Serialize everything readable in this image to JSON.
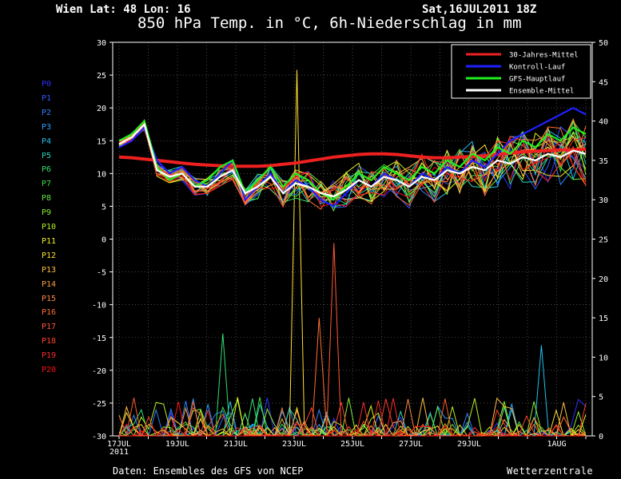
{
  "header": {
    "location": "Wien   Lat: 48 Lon: 16",
    "date": "Sat,16JUL2011 18Z",
    "title": "850 hPa Temp. in °C, 6h-Niederschlag in mm"
  },
  "footer": {
    "source": "Daten: Ensembles des GFS von NCEP",
    "brand": "Wetterzentrale"
  },
  "members": [
    "P0",
    "P1",
    "P2",
    "P3",
    "P4",
    "P5",
    "P6",
    "P7",
    "P8",
    "P9",
    "P10",
    "P11",
    "P12",
    "P13",
    "P14",
    "P15",
    "P16",
    "P17",
    "P18",
    "P19",
    "P20"
  ],
  "member_colors": [
    "#3030ff",
    "#2f58ff",
    "#2f80ff",
    "#2aa0ff",
    "#22c0ee",
    "#20d8b8",
    "#30e070",
    "#40e040",
    "#60e840",
    "#88ee30",
    "#b8f020",
    "#e8f020",
    "#ffe030",
    "#ffc040",
    "#ffa040",
    "#ff8840",
    "#ff7030",
    "#ff5a30",
    "#ff4030",
    "#ff2828",
    "#ff1010"
  ],
  "chart_data": {
    "type": "line",
    "title": "850 hPa Temp. in °C, 6h-Niederschlag in mm",
    "x_ticks": [
      "17JUL\n2011",
      "19JUL",
      "21JUL",
      "23JUL",
      "25JUL",
      "27JUL",
      "29JUL",
      "1AUG"
    ],
    "y_left": {
      "label": "°C",
      "range": [
        -30,
        30
      ],
      "ticks": [
        -30,
        -25,
        -20,
        -15,
        -10,
        -5,
        0,
        5,
        10,
        15,
        20,
        25,
        30
      ]
    },
    "y_right": {
      "label": "mm",
      "range": [
        0,
        50
      ],
      "ticks": [
        0,
        5,
        10,
        15,
        20,
        25,
        30,
        35,
        40,
        45,
        50
      ]
    },
    "grid": true,
    "legend_position": "top-right",
    "series": [
      {
        "name": "30-Jahres-Mittel",
        "color": "#ee2020",
        "axis": "left",
        "values": [
          12.5,
          12.4,
          12.2,
          12.0,
          11.8,
          11.6,
          11.4,
          11.3,
          11.2,
          11.1,
          11.1,
          11.1,
          11.2,
          11.4,
          11.6,
          11.9,
          12.2,
          12.5,
          12.7,
          12.9,
          13.0,
          13.0,
          12.9,
          12.7,
          12.5,
          12.4,
          12.4,
          12.5,
          12.6,
          12.7,
          12.9,
          13.1,
          13.3,
          13.4,
          13.5,
          13.6,
          13.6,
          13.7
        ]
      },
      {
        "name": "Kontroll-Lauf",
        "color": "#2020ff",
        "axis": "left",
        "values": [
          14,
          15,
          17,
          12,
          10,
          11,
          9,
          8,
          10,
          12,
          6,
          8,
          10,
          7,
          9,
          8,
          6,
          5,
          7,
          9,
          8,
          10,
          9,
          8,
          10,
          9,
          11,
          10,
          12,
          11,
          13,
          15,
          16,
          17,
          18,
          19,
          20,
          19
        ]
      },
      {
        "name": "GFS-Hauptlauf",
        "color": "#20ee20",
        "axis": "left",
        "values": [
          15,
          16,
          18,
          11,
          9,
          10,
          8,
          9,
          11,
          12,
          7,
          9,
          11,
          8,
          10,
          9,
          7,
          6,
          8,
          10,
          9,
          11,
          10,
          9,
          11,
          10,
          12,
          11,
          13,
          12,
          14,
          13,
          15,
          14,
          16,
          15,
          17,
          16
        ]
      },
      {
        "name": "Ensemble-Mittel",
        "color": "#ffffff",
        "axis": "left",
        "values": [
          14.5,
          15.5,
          17.5,
          10.5,
          9.5,
          10,
          8,
          8,
          9.5,
          10.5,
          7,
          8,
          9.5,
          7,
          8.5,
          8,
          7,
          6.5,
          7.5,
          9,
          8,
          9.5,
          9,
          8,
          9.5,
          9,
          10.5,
          10,
          11,
          10.5,
          12,
          11.5,
          12.5,
          12,
          13,
          12.5,
          13.5,
          13
        ]
      }
    ],
    "precip_peaks_mm": [
      {
        "date_index": 24,
        "value": 46.5,
        "series": "P12"
      },
      {
        "date_index": 29,
        "value": 24.5,
        "series": "P17"
      },
      {
        "date_index": 27,
        "value": 15.0,
        "series": "P16"
      },
      {
        "date_index": 14,
        "value": 13.0,
        "series": "P6"
      },
      {
        "date_index": 57,
        "value": 11.5,
        "series": "P4"
      }
    ]
  }
}
